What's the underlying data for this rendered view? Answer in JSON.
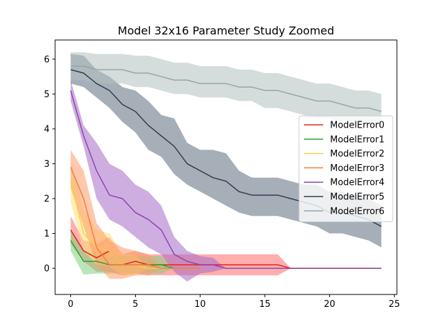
{
  "chart_data": {
    "type": "line",
    "title": "Model 32x16 Parameter Study Zoomed",
    "xlabel": "",
    "ylabel": "",
    "xlim": [
      -1.2,
      25.2
    ],
    "ylim": [
      -0.75,
      6.55
    ],
    "xticks": [
      0,
      5,
      10,
      15,
      20,
      25
    ],
    "yticks": [
      0,
      1,
      2,
      3,
      4,
      5,
      6
    ],
    "grid": false,
    "legend_position": "center-right",
    "series": [
      {
        "name": "ModelError0",
        "color": "#e8211d",
        "band_color": "#ff6b6b",
        "x": [
          0,
          1,
          2,
          3,
          4,
          5,
          6,
          7,
          8,
          9,
          10,
          11,
          12,
          13,
          14,
          15,
          16,
          17,
          18,
          19,
          20,
          21,
          22,
          23,
          24
        ],
        "values": [
          1.1,
          0.5,
          0.3,
          0.5,
          0.1,
          0.2,
          0.1,
          0.1,
          0.1,
          0.1,
          0.1,
          0.1,
          0.1,
          0.1,
          0.1,
          0.1,
          0.1,
          0,
          0,
          0,
          0,
          0,
          0,
          0,
          0
        ],
        "lower": [
          0.7,
          0.2,
          -0.1,
          -0.1,
          -0.2,
          -0.15,
          -0.2,
          -0.2,
          -0.2,
          -0.2,
          -0.2,
          -0.2,
          -0.2,
          -0.2,
          -0.2,
          -0.2,
          -0.2,
          0,
          0,
          0,
          0,
          0,
          0,
          0,
          0
        ],
        "upper": [
          1.5,
          0.8,
          0.7,
          0.9,
          0.4,
          0.5,
          0.4,
          0.4,
          0.4,
          0.4,
          0.4,
          0.4,
          0.4,
          0.4,
          0.4,
          0.4,
          0.4,
          0,
          0,
          0,
          0,
          0,
          0,
          0,
          0
        ]
      },
      {
        "name": "ModelError1",
        "color": "#2ca02c",
        "band_color": "#7fd07f",
        "x": [
          0,
          1,
          2,
          3,
          4,
          5,
          6,
          7,
          8,
          9,
          10
        ],
        "values": [
          0.8,
          0.2,
          0.2,
          0.1,
          0.1,
          0.1,
          0.1,
          0.1,
          0,
          0,
          0
        ],
        "lower": [
          0.5,
          -0.18,
          -0.15,
          -0.15,
          -0.15,
          -0.15,
          -0.15,
          -0.15,
          0,
          0,
          0
        ],
        "upper": [
          1.1,
          0.5,
          0.5,
          0.35,
          0.35,
          0.35,
          0.35,
          0.35,
          0,
          0,
          0
        ]
      },
      {
        "name": "ModelError2",
        "color": "#f5d04a",
        "band_color": "#ffe27a",
        "x": [
          0,
          1,
          2,
          3,
          4,
          5,
          6,
          7,
          8,
          9,
          10
        ],
        "values": [
          2.5,
          1.0,
          0.6,
          0.5,
          0.1,
          0.1,
          0,
          0,
          0,
          0,
          0
        ],
        "lower": [
          1.9,
          0.5,
          0.1,
          0.05,
          -0.2,
          -0.2,
          0,
          0,
          0,
          0,
          0
        ],
        "upper": [
          3.1,
          1.7,
          1.1,
          1.0,
          0.4,
          0.4,
          0,
          0,
          0,
          0,
          0
        ]
      },
      {
        "name": "ModelError3",
        "color": "#f07f3c",
        "band_color": "#ff9966",
        "x": [
          0,
          1,
          2,
          3,
          4,
          5,
          6,
          7,
          8,
          9,
          10
        ],
        "values": [
          2.9,
          2.0,
          0.6,
          0.1,
          0.1,
          0.1,
          0.1,
          0,
          0,
          0,
          0
        ],
        "lower": [
          2.3,
          1.2,
          0.1,
          -0.3,
          -0.3,
          -0.2,
          -0.2,
          0,
          0,
          0,
          0
        ],
        "upper": [
          3.4,
          2.8,
          1.3,
          0.8,
          0.6,
          0.5,
          0.4,
          0,
          0,
          0,
          0
        ]
      },
      {
        "name": "ModelError4",
        "color": "#8e44ad",
        "band_color": "#a66bc9",
        "x": [
          0,
          1,
          2,
          3,
          4,
          5,
          6,
          7,
          8,
          9,
          10,
          11,
          12,
          13,
          14,
          15,
          16,
          17,
          18,
          19,
          20,
          21,
          22,
          23,
          24
        ],
        "values": [
          5.1,
          3.8,
          2.8,
          2.1,
          2.0,
          1.6,
          1.4,
          1.1,
          0.4,
          0.2,
          0.1,
          0.1,
          0,
          0,
          0,
          0,
          0,
          0,
          0,
          0,
          0,
          0,
          0,
          0,
          0
        ],
        "lower": [
          4.8,
          3.5,
          2.0,
          1.4,
          1.2,
          0.9,
          0.6,
          0.4,
          -0.1,
          -0.38,
          -0.15,
          -0.1,
          0,
          0,
          0,
          0,
          0,
          0,
          0,
          0,
          0,
          0,
          0,
          0,
          0
        ],
        "upper": [
          5.4,
          4.1,
          3.6,
          3.0,
          2.8,
          2.4,
          2.2,
          1.8,
          0.9,
          0.5,
          0.35,
          0.3,
          0,
          0,
          0,
          0,
          0,
          0,
          0,
          0,
          0,
          0,
          0,
          0,
          0
        ]
      },
      {
        "name": "ModelError5",
        "color": "#2c3e50",
        "band_color": "#5d6d7e",
        "x": [
          0,
          1,
          2,
          3,
          4,
          5,
          6,
          7,
          8,
          9,
          10,
          11,
          12,
          13,
          14,
          15,
          16,
          17,
          18,
          19,
          20,
          21,
          22,
          23,
          24
        ],
        "values": [
          5.7,
          5.6,
          5.3,
          5.1,
          4.7,
          4.5,
          4.1,
          3.8,
          3.5,
          3.0,
          2.8,
          2.6,
          2.5,
          2.2,
          2.1,
          2.1,
          2.1,
          2.0,
          1.9,
          1.8,
          1.6,
          1.6,
          1.5,
          1.4,
          1.2
        ],
        "lower": [
          5.3,
          5.2,
          4.9,
          4.6,
          4.2,
          3.9,
          3.4,
          3.2,
          2.7,
          2.4,
          2.2,
          2.0,
          1.8,
          1.6,
          1.5,
          1.5,
          1.5,
          1.4,
          1.3,
          1.2,
          1.0,
          1.0,
          0.9,
          0.8,
          0.6
        ],
        "upper": [
          6.15,
          6.1,
          5.7,
          5.5,
          5.2,
          5.1,
          4.8,
          4.4,
          4.3,
          3.6,
          3.4,
          3.4,
          3.3,
          2.8,
          2.6,
          2.6,
          2.6,
          2.5,
          2.4,
          2.4,
          2.2,
          2.2,
          2.1,
          2.0,
          1.8
        ]
      },
      {
        "name": "ModelError6",
        "color": "#95a5a6",
        "band_color": "#b2c0c0",
        "x": [
          0,
          1,
          2,
          3,
          4,
          5,
          6,
          7,
          8,
          9,
          10,
          11,
          12,
          13,
          14,
          15,
          16,
          17,
          18,
          19,
          20,
          21,
          22,
          23,
          24
        ],
        "values": [
          5.8,
          5.8,
          5.7,
          5.7,
          5.7,
          5.6,
          5.6,
          5.5,
          5.4,
          5.4,
          5.3,
          5.3,
          5.3,
          5.2,
          5.2,
          5.1,
          5.1,
          5.0,
          4.9,
          4.8,
          4.8,
          4.7,
          4.6,
          4.6,
          4.5
        ],
        "lower": [
          5.4,
          5.4,
          5.3,
          5.3,
          5.3,
          5.2,
          5.2,
          5.1,
          5.0,
          5.0,
          4.9,
          4.9,
          4.9,
          4.8,
          4.8,
          4.6,
          4.6,
          4.5,
          4.4,
          4.3,
          4.3,
          4.2,
          4.1,
          4.1,
          4.0
        ],
        "upper": [
          6.2,
          6.2,
          6.15,
          6.15,
          6.15,
          6.1,
          6.1,
          6.0,
          5.9,
          5.9,
          5.8,
          5.8,
          5.8,
          5.7,
          5.7,
          5.6,
          5.6,
          5.5,
          5.4,
          5.3,
          5.3,
          5.2,
          5.1,
          5.1,
          5.0
        ]
      }
    ]
  }
}
